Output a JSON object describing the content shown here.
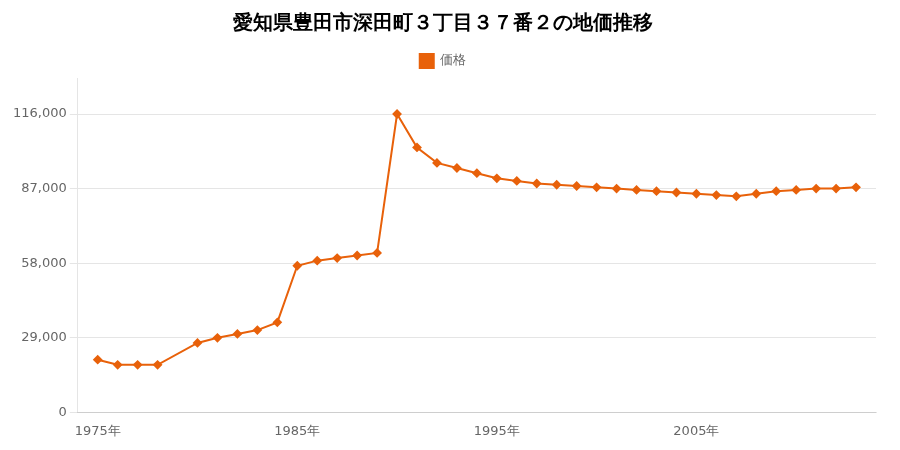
{
  "chart_data": {
    "type": "line",
    "title": "愛知県豊田市深田町３丁目３７番２の地価推移",
    "x": [
      1975,
      1976,
      1977,
      1978,
      1980,
      1981,
      1982,
      1983,
      1984,
      1985,
      1986,
      1987,
      1988,
      1989,
      1990,
      1991,
      1992,
      1993,
      1994,
      1995,
      1996,
      1997,
      1998,
      1999,
      2000,
      2001,
      2002,
      2003,
      2004,
      2005,
      2006,
      2007,
      2008,
      2009,
      2010,
      2011,
      2012,
      2013
    ],
    "series": [
      {
        "name": "価格",
        "color": "#e8610a",
        "marker": "diamond",
        "values": [
          20500,
          18500,
          18500,
          18500,
          27000,
          29000,
          30500,
          32000,
          35000,
          57000,
          59000,
          60000,
          61000,
          62000,
          116000,
          103000,
          97000,
          95000,
          93000,
          91000,
          90000,
          89000,
          88500,
          88000,
          87500,
          87000,
          86500,
          86000,
          85500,
          85000,
          84500,
          84000,
          85000,
          86000,
          86500,
          87000,
          87000,
          87500
        ]
      }
    ],
    "xlim": [
      1974,
      2014
    ],
    "xticks": [
      {
        "value": 1975,
        "label": "1975年"
      },
      {
        "value": 1985,
        "label": "1985年"
      },
      {
        "value": 1995,
        "label": "1995年"
      },
      {
        "value": 2005,
        "label": "2005年"
      }
    ],
    "ylim": [
      0,
      130000
    ],
    "yticks": [
      0,
      {
        "value": 29000,
        "label": "29,000"
      },
      {
        "value": 58000,
        "label": "58,000"
      },
      {
        "value": 87000,
        "label": "87,000"
      },
      {
        "value": 116000,
        "label": "116,000"
      }
    ],
    "grid": "y",
    "legend": "top"
  }
}
